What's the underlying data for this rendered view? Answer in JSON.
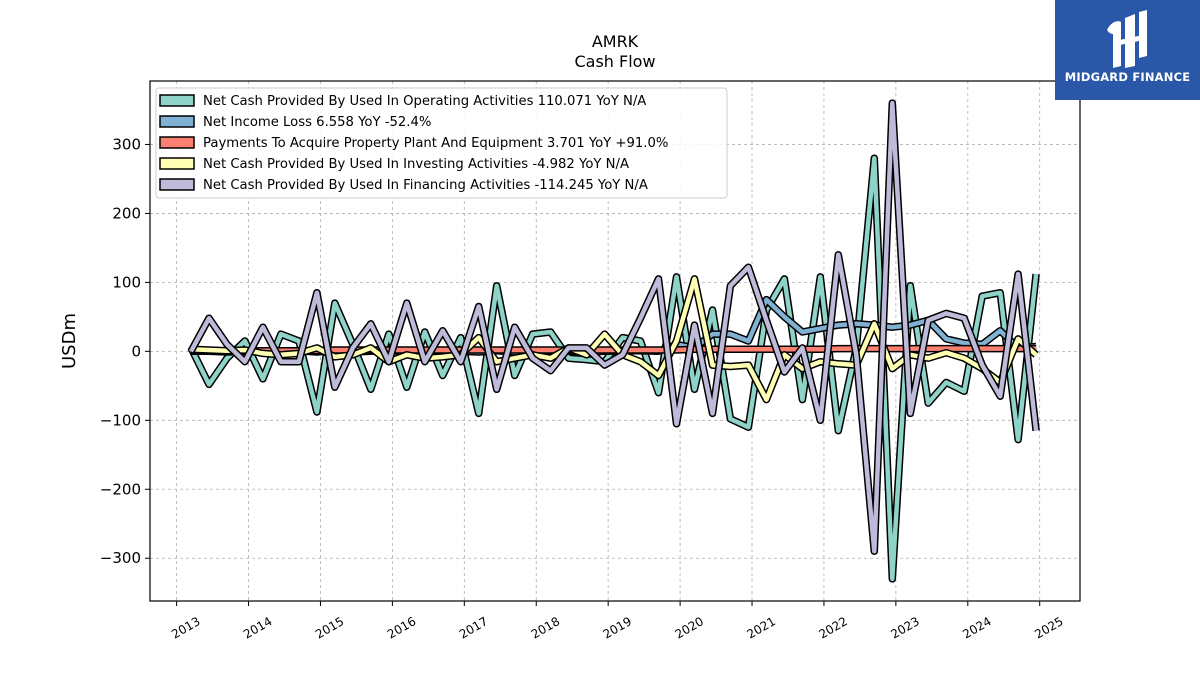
{
  "chart_data": {
    "type": "line",
    "title": "AMRK",
    "subtitle": "Cash Flow",
    "xlabel": "",
    "ylabel": "USDm",
    "xlim": [
      2012.63,
      2025.56
    ],
    "ylim": [
      -362,
      392
    ],
    "x_ticks": [
      "2013",
      "2014",
      "2015",
      "2016",
      "2017",
      "2018",
      "2019",
      "2020",
      "2021",
      "2022",
      "2023",
      "2024",
      "2025"
    ],
    "y_ticks": [
      {
        "value": 300,
        "label": "300"
      },
      {
        "value": 200,
        "label": "200"
      },
      {
        "value": 100,
        "label": "100"
      },
      {
        "value": 0,
        "label": "0"
      },
      {
        "value": -100,
        "label": "−100"
      },
      {
        "value": -200,
        "label": "−200"
      },
      {
        "value": -300,
        "label": "−300"
      }
    ],
    "grid": true,
    "legend_position": "top-left",
    "x": [
      2013.2,
      2013.45,
      2013.7,
      2013.95,
      2014.2,
      2014.45,
      2014.7,
      2014.95,
      2015.2,
      2015.45,
      2015.7,
      2015.95,
      2016.2,
      2016.45,
      2016.7,
      2016.95,
      2017.2,
      2017.45,
      2017.7,
      2017.95,
      2018.2,
      2018.45,
      2018.7,
      2018.95,
      2019.2,
      2019.45,
      2019.7,
      2019.95,
      2020.2,
      2020.45,
      2020.7,
      2020.95,
      2021.2,
      2021.45,
      2021.7,
      2021.95,
      2022.2,
      2022.45,
      2022.7,
      2022.95,
      2023.2,
      2023.45,
      2023.7,
      2023.95,
      2024.2,
      2024.45,
      2024.7,
      2024.95
    ],
    "series": [
      {
        "name": "Net Cash Provided By Used In Operating Activities",
        "legend": "Net Cash Provided By Used In Operating Activities  110.071 YoY N/A",
        "color": "#8dd3c7",
        "values": [
          5,
          -48,
          -10,
          15,
          -40,
          25,
          15,
          -88,
          70,
          10,
          -55,
          25,
          -52,
          28,
          -35,
          20,
          -90,
          95,
          -35,
          25,
          28,
          -10,
          -12,
          -15,
          20,
          15,
          -60,
          108,
          -55,
          60,
          -98,
          -110,
          60,
          105,
          -70,
          108,
          -115,
          5,
          280,
          -330,
          95,
          -75,
          -45,
          -58,
          80,
          85,
          -128,
          112
        ]
      },
      {
        "name": "Net Income Loss",
        "legend": "Net Income Loss  6.558 YoY -52.4%",
        "color": "#80b1d3",
        "values": [
          0,
          0,
          -1,
          0,
          0,
          1,
          1,
          -1,
          1,
          -1,
          0,
          1,
          0,
          0,
          1,
          0,
          -1,
          1,
          -1,
          0,
          1,
          0,
          -1,
          0,
          1,
          1,
          0,
          10,
          5,
          25,
          25,
          15,
          75,
          50,
          28,
          33,
          38,
          40,
          38,
          35,
          38,
          45,
          18,
          12,
          10,
          30,
          5,
          7
        ]
      },
      {
        "name": "Payments To Acquire Property Plant And Equipment",
        "legend": "Payments To Acquire Property Plant And Equipment  3.701 YoY +91.0%",
        "color": "#fb8072",
        "values": [
          1,
          1,
          1,
          1,
          1,
          1,
          1,
          1,
          2,
          2,
          2,
          2,
          2,
          2,
          2,
          2,
          2,
          2,
          2,
          2,
          2,
          2,
          2,
          2,
          2,
          2,
          2,
          2,
          3,
          3,
          3,
          3,
          3,
          3,
          3,
          3,
          4,
          4,
          4,
          4,
          4,
          4,
          4,
          4,
          4,
          4,
          4,
          4
        ]
      },
      {
        "name": "Net Cash Provided By Used In Investing Activities",
        "legend": "Net Cash Provided By Used In Investing Activities  -4.982 YoY N/A",
        "color": "#ffffb3",
        "values": [
          3,
          2,
          1,
          2,
          -3,
          -5,
          -3,
          5,
          -8,
          -5,
          5,
          -15,
          -5,
          -10,
          -8,
          -5,
          20,
          -15,
          -10,
          -5,
          -10,
          5,
          -5,
          25,
          -5,
          -15,
          -35,
          15,
          105,
          -20,
          -22,
          -20,
          -70,
          -5,
          -25,
          -15,
          -18,
          -20,
          40,
          -25,
          -5,
          -10,
          -2,
          -10,
          -25,
          -45,
          18,
          -5
        ]
      },
      {
        "name": "Net Cash Provided By Used In Financing Activities",
        "legend": "Net Cash Provided By Used In Financing Activities  -114.245 YoY N/A",
        "color": "#bebada",
        "values": [
          0,
          48,
          10,
          -15,
          35,
          -15,
          -15,
          85,
          -52,
          5,
          40,
          -15,
          70,
          -15,
          30,
          -15,
          65,
          -55,
          35,
          -10,
          -28,
          5,
          5,
          -20,
          -5,
          48,
          105,
          -105,
          38,
          -90,
          95,
          122,
          45,
          -30,
          5,
          -100,
          140,
          -5,
          -290,
          360,
          -90,
          45,
          55,
          48,
          -20,
          -65,
          112,
          -115
        ]
      }
    ]
  },
  "logo": {
    "brand": "MIDGARD FINANCE"
  }
}
